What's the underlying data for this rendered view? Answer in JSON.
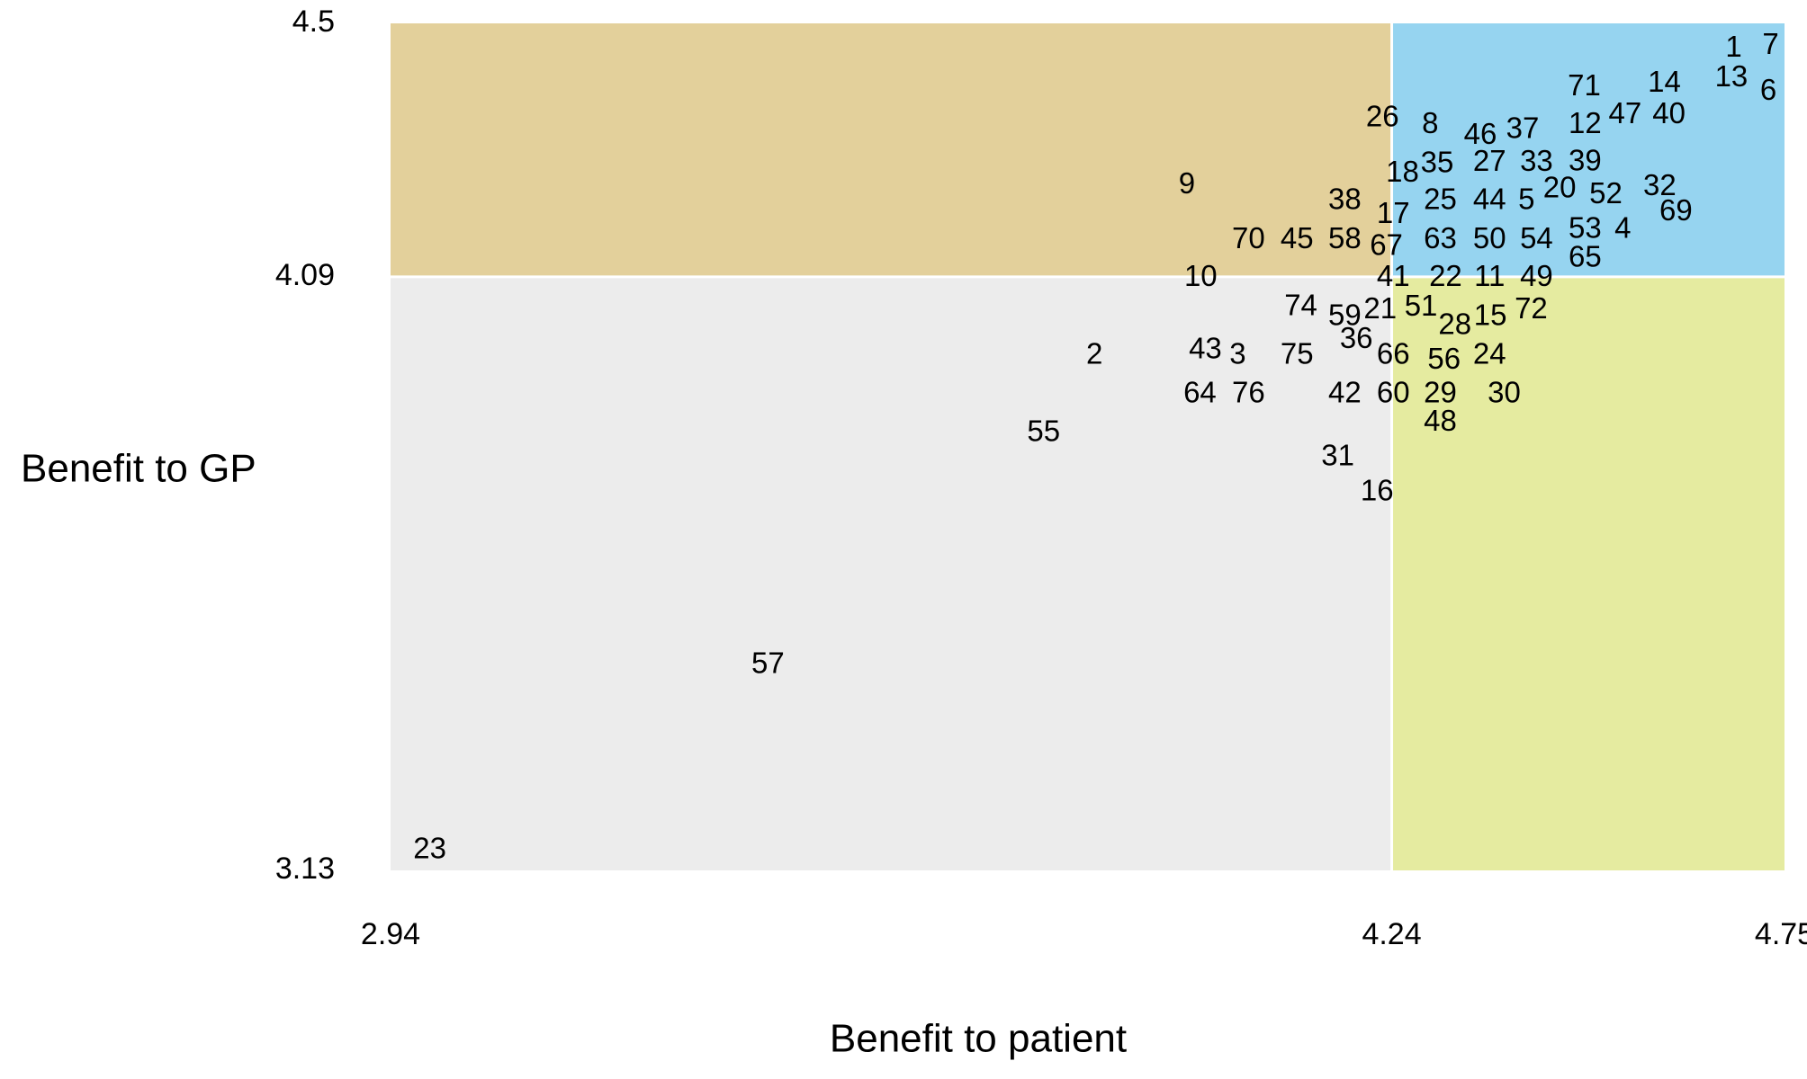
{
  "chart_data": {
    "type": "scatter",
    "x_label": "Benefit to patient",
    "y_label": "Benefit to GP",
    "xlim": [
      2.94,
      4.75
    ],
    "ylim": [
      3.13,
      4.5
    ],
    "xticks": [
      2.94,
      4.24,
      4.75
    ],
    "yticks": [
      3.13,
      4.09,
      4.5
    ],
    "quadrant_colors": {
      "top_left": "#e3d09b",
      "top_right": "#96d4f0",
      "bottom_left": "#ececec",
      "bottom_right": "#e5eba0"
    },
    "labels": [
      1,
      7,
      13,
      6,
      71,
      14,
      47,
      40,
      12,
      26,
      8,
      46,
      37,
      35,
      27,
      33,
      39,
      18,
      9,
      20,
      52,
      32,
      38,
      25,
      44,
      5,
      69,
      17,
      53,
      4,
      70,
      45,
      58,
      67,
      63,
      50,
      54,
      65,
      10,
      41,
      22,
      11,
      49,
      74,
      59,
      21,
      51,
      28,
      15,
      72,
      43,
      3,
      2,
      36,
      75,
      66,
      56,
      24,
      64,
      76,
      42,
      60,
      29,
      30,
      48,
      55,
      31,
      16,
      57,
      23
    ],
    "x": [
      4.684,
      4.732,
      4.681,
      4.729,
      4.49,
      4.594,
      4.543,
      4.6,
      4.491,
      4.228,
      4.29,
      4.355,
      4.41,
      4.299,
      4.367,
      4.428,
      4.491,
      4.254,
      3.974,
      4.458,
      4.518,
      4.588,
      4.179,
      4.303,
      4.367,
      4.415,
      4.609,
      4.242,
      4.491,
      4.54,
      4.054,
      4.117,
      4.179,
      4.233,
      4.303,
      4.367,
      4.428,
      4.491,
      3.992,
      4.242,
      4.31,
      4.367,
      4.428,
      4.122,
      4.179,
      4.225,
      4.278,
      4.322,
      4.368,
      4.421,
      3.998,
      4.04,
      3.854,
      4.194,
      4.117,
      4.242,
      4.308,
      4.367,
      3.991,
      4.054,
      4.179,
      4.242,
      4.303,
      4.386,
      4.303,
      3.788,
      4.17,
      4.221,
      3.43,
      2.991
    ],
    "y": [
      4.459,
      4.463,
      4.411,
      4.389,
      4.396,
      4.402,
      4.351,
      4.351,
      4.335,
      4.346,
      4.335,
      4.318,
      4.327,
      4.272,
      4.274,
      4.274,
      4.275,
      4.257,
      4.238,
      4.231,
      4.222,
      4.235,
      4.212,
      4.212,
      4.212,
      4.212,
      4.194,
      4.19,
      4.166,
      4.166,
      4.149,
      4.149,
      4.149,
      4.138,
      4.149,
      4.149,
      4.149,
      4.119,
      4.088,
      4.088,
      4.088,
      4.088,
      4.088,
      4.041,
      4.025,
      4.036,
      4.04,
      4.01,
      4.025,
      4.036,
      3.971,
      3.962,
      3.962,
      3.988,
      3.962,
      3.962,
      3.954,
      3.962,
      3.9,
      3.9,
      3.9,
      3.9,
      3.9,
      3.9,
      3.854,
      3.837,
      3.798,
      3.741,
      3.462,
      3.162
    ]
  }
}
